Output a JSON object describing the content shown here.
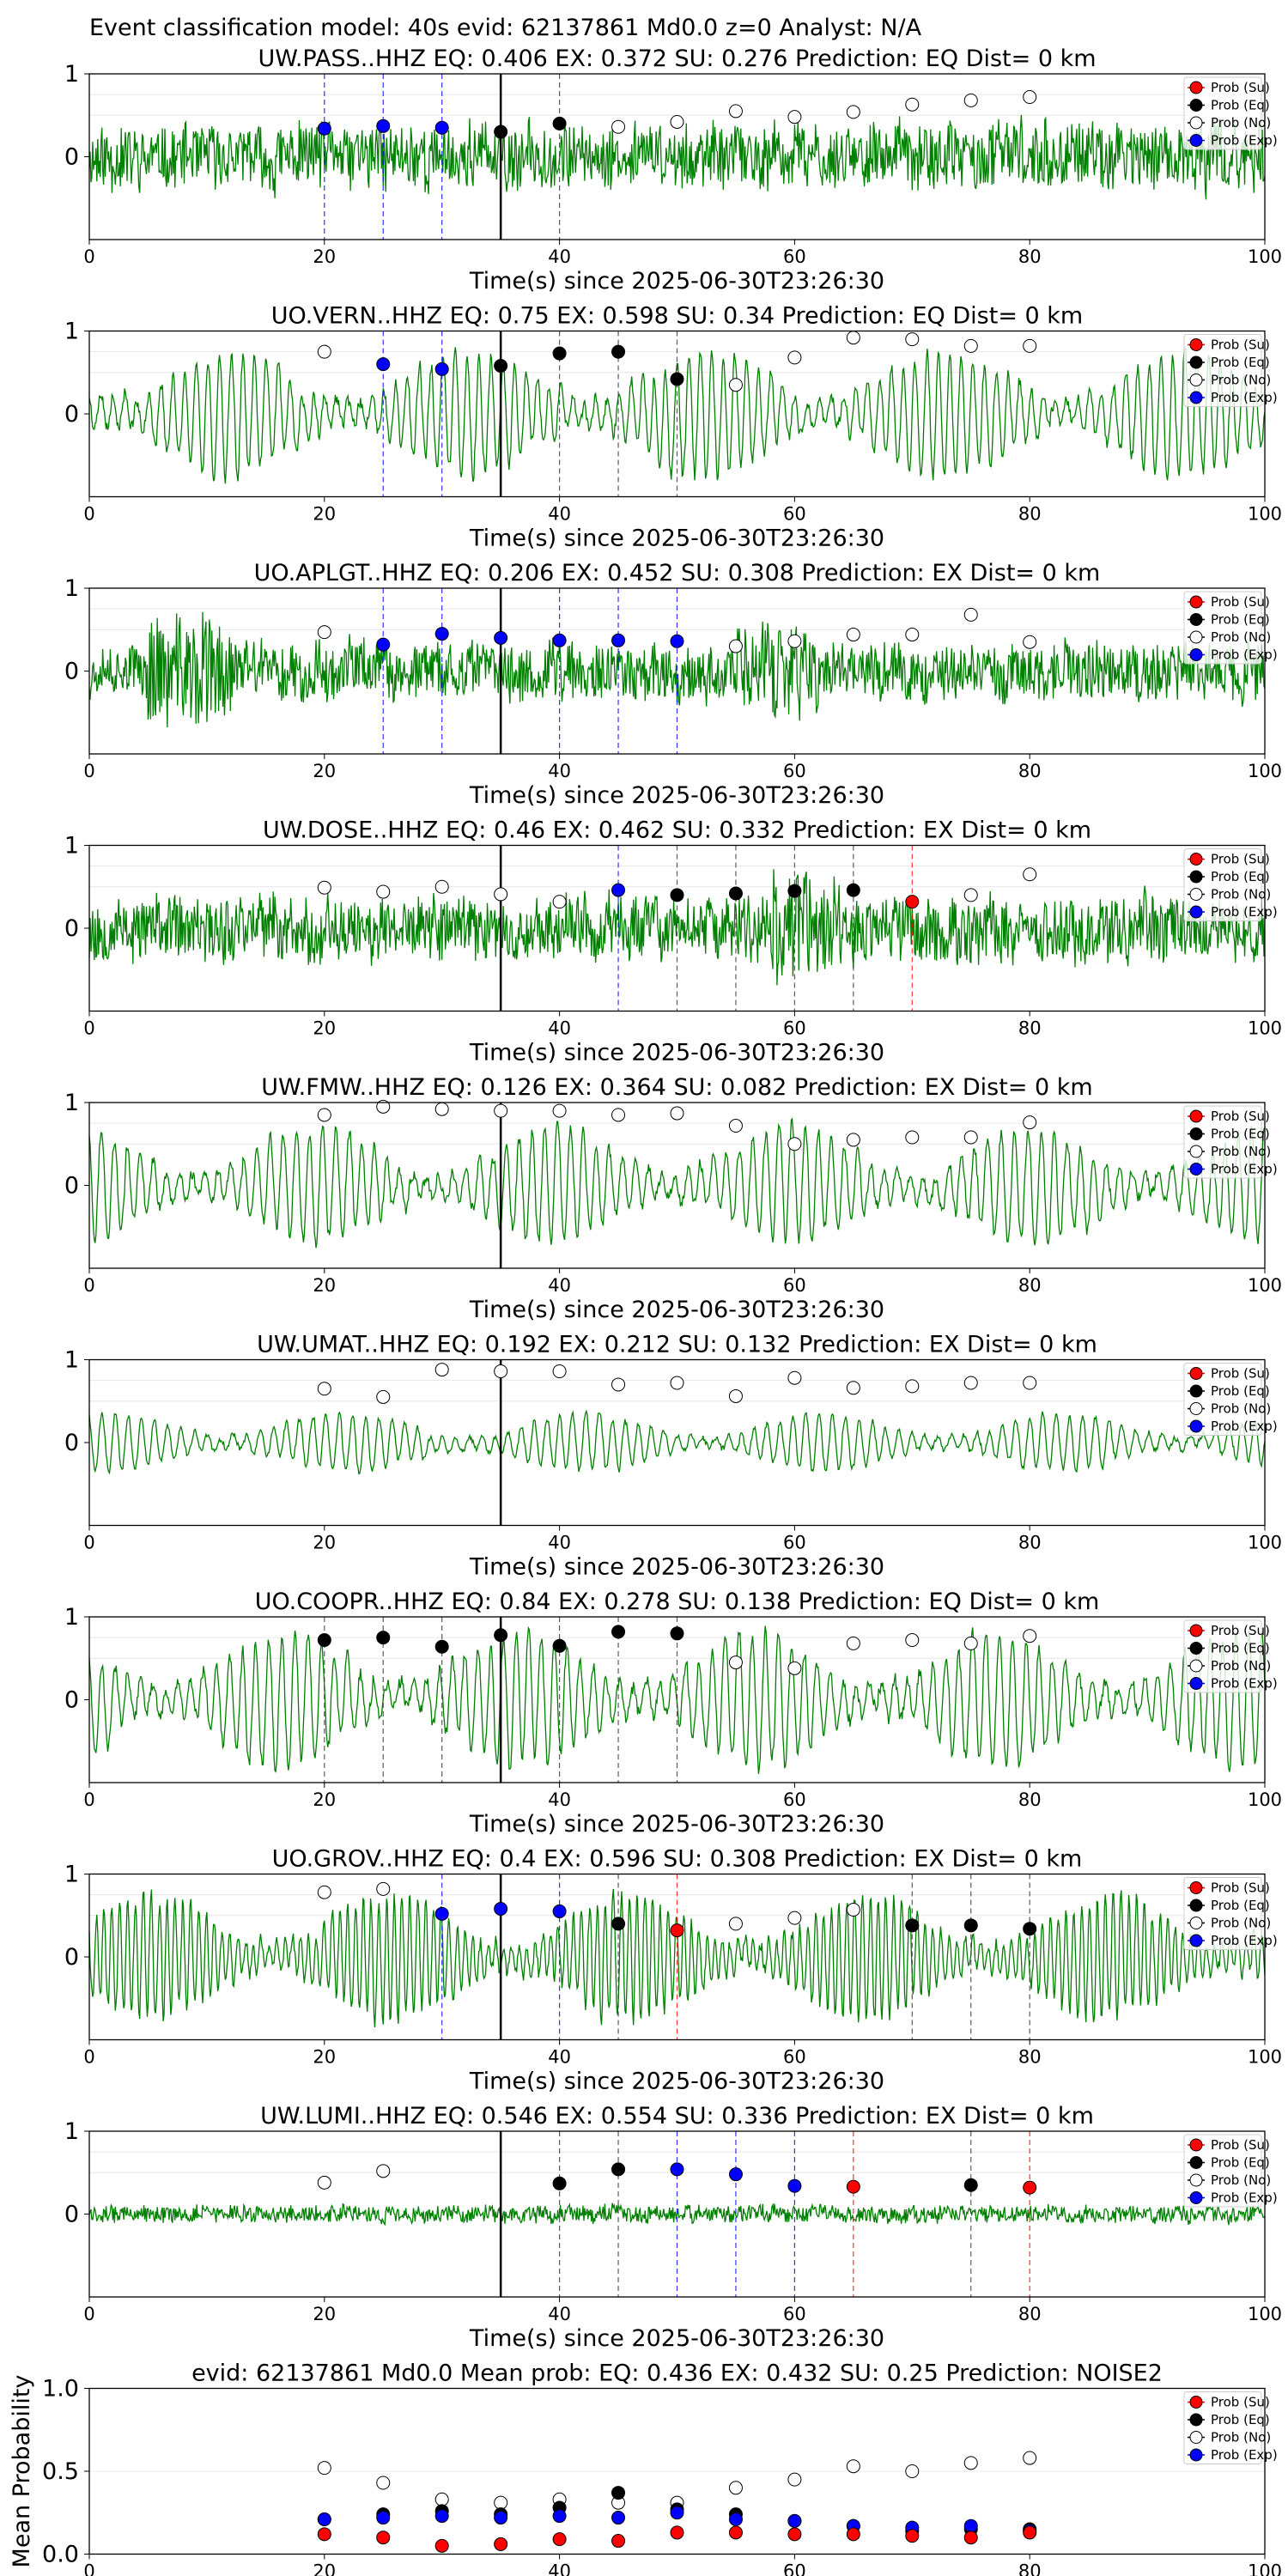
{
  "suptitle": "Event classification model: 40s evid: 62137861 Md0.0 z=0 Analyst: N/A",
  "colors": {
    "su": "#ff0000",
    "eq": "#000000",
    "no": "#ffffff",
    "exp": "#0000ff",
    "trace": "#008000"
  },
  "legend_labels": [
    "Prob (Su)",
    "Prob (Eq)",
    "Prob (No)",
    "Prob (Exp)"
  ],
  "xlabel": "Time(s) since 2025-06-30T23:26:30",
  "xticks": [
    0,
    20,
    40,
    60,
    80,
    100
  ],
  "yticks": [
    0,
    1
  ],
  "origin_time": 35,
  "chart_data": [
    {
      "type": "line",
      "station": "UW.PASS..HHZ",
      "title": "UW.PASS..HHZ   EQ: 0.406  EX: 0.372  SU: 0.276   Prediction: EQ    Dist= 0 km",
      "xlim": [
        0,
        100
      ],
      "ylim": [
        -1,
        1
      ],
      "amp": 0.45,
      "freq": 18,
      "seed": 11,
      "burst": [],
      "points": [
        {
          "x": 20,
          "y": 0.34,
          "c": "exp"
        },
        {
          "x": 25,
          "y": 0.37,
          "c": "exp"
        },
        {
          "x": 30,
          "y": 0.35,
          "c": "exp"
        },
        {
          "x": 35,
          "y": 0.3,
          "c": "eq"
        },
        {
          "x": 40,
          "y": 0.4,
          "c": "eq"
        },
        {
          "x": 45,
          "y": 0.36,
          "c": "no"
        },
        {
          "x": 50,
          "y": 0.42,
          "c": "no"
        },
        {
          "x": 55,
          "y": 0.55,
          "c": "no"
        },
        {
          "x": 60,
          "y": 0.48,
          "c": "no"
        },
        {
          "x": 65,
          "y": 0.54,
          "c": "no"
        },
        {
          "x": 70,
          "y": 0.63,
          "c": "no"
        },
        {
          "x": 75,
          "y": 0.68,
          "c": "no"
        },
        {
          "x": 80,
          "y": 0.72,
          "c": "no"
        }
      ],
      "vlines": [
        {
          "x": 20,
          "c": "exp"
        },
        {
          "x": 25,
          "c": "exp"
        },
        {
          "x": 30,
          "c": "exp"
        },
        {
          "x": 40,
          "c": "eq"
        }
      ]
    },
    {
      "type": "line",
      "station": "UO.VERN..HHZ",
      "title": "UO.VERN..HHZ   EQ: 0.75  EX: 0.598  SU: 0.34   Prediction: EQ    Dist= 0 km",
      "xlim": [
        0,
        100
      ],
      "ylim": [
        -1,
        1
      ],
      "amp": 0.75,
      "freq": 1.0,
      "seed": 23,
      "burst": [],
      "points": [
        {
          "x": 20,
          "y": 0.75,
          "c": "no"
        },
        {
          "x": 25,
          "y": 0.6,
          "c": "exp"
        },
        {
          "x": 30,
          "y": 0.54,
          "c": "exp"
        },
        {
          "x": 35,
          "y": 0.58,
          "c": "eq"
        },
        {
          "x": 40,
          "y": 0.73,
          "c": "eq"
        },
        {
          "x": 45,
          "y": 0.75,
          "c": "eq"
        },
        {
          "x": 50,
          "y": 0.42,
          "c": "eq"
        },
        {
          "x": 55,
          "y": 0.35,
          "c": "no"
        },
        {
          "x": 60,
          "y": 0.68,
          "c": "no"
        },
        {
          "x": 65,
          "y": 0.92,
          "c": "no"
        },
        {
          "x": 70,
          "y": 0.9,
          "c": "no"
        },
        {
          "x": 75,
          "y": 0.82,
          "c": "no"
        },
        {
          "x": 80,
          "y": 0.82,
          "c": "no"
        }
      ],
      "vlines": [
        {
          "x": 25,
          "c": "exp"
        },
        {
          "x": 30,
          "c": "exp"
        },
        {
          "x": 40,
          "c": "eq"
        },
        {
          "x": 45,
          "c": "eq"
        },
        {
          "x": 50,
          "c": "eq"
        }
      ]
    },
    {
      "type": "line",
      "station": "UO.APLGT..HHZ",
      "title": "UO.APLGT..HHZ   EQ: 0.206  EX: 0.452  SU: 0.308   Prediction: EX    Dist= 0 km",
      "xlim": [
        0,
        100
      ],
      "ylim": [
        -1,
        1
      ],
      "amp": 0.4,
      "freq": 18,
      "seed": 37,
      "burst": [
        [
          5,
          12,
          2.0
        ],
        [
          55,
          62,
          1.6
        ]
      ],
      "points": [
        {
          "x": 20,
          "y": 0.47,
          "c": "no"
        },
        {
          "x": 25,
          "y": 0.32,
          "c": "exp"
        },
        {
          "x": 30,
          "y": 0.45,
          "c": "exp"
        },
        {
          "x": 35,
          "y": 0.4,
          "c": "exp"
        },
        {
          "x": 40,
          "y": 0.37,
          "c": "exp"
        },
        {
          "x": 45,
          "y": 0.37,
          "c": "exp"
        },
        {
          "x": 50,
          "y": 0.36,
          "c": "exp"
        },
        {
          "x": 55,
          "y": 0.3,
          "c": "no"
        },
        {
          "x": 60,
          "y": 0.36,
          "c": "no"
        },
        {
          "x": 65,
          "y": 0.44,
          "c": "no"
        },
        {
          "x": 70,
          "y": 0.44,
          "c": "no"
        },
        {
          "x": 75,
          "y": 0.68,
          "c": "no"
        },
        {
          "x": 80,
          "y": 0.35,
          "c": "no"
        }
      ],
      "vlines": [
        {
          "x": 25,
          "c": "exp"
        },
        {
          "x": 30,
          "c": "exp"
        },
        {
          "x": 40,
          "c": "exp"
        },
        {
          "x": 45,
          "c": "exp"
        },
        {
          "x": 50,
          "c": "exp"
        }
      ]
    },
    {
      "type": "line",
      "station": "UW.DOSE..HHZ",
      "title": "UW.DOSE..HHZ   EQ: 0.46  EX: 0.462  SU: 0.332   Prediction: EX    Dist= 0 km",
      "xlim": [
        0,
        100
      ],
      "ylim": [
        -1,
        1
      ],
      "amp": 0.45,
      "freq": 18,
      "seed": 53,
      "burst": [
        [
          58,
          64,
          1.7
        ]
      ],
      "points": [
        {
          "x": 20,
          "y": 0.49,
          "c": "no"
        },
        {
          "x": 25,
          "y": 0.44,
          "c": "no"
        },
        {
          "x": 30,
          "y": 0.5,
          "c": "no"
        },
        {
          "x": 35,
          "y": 0.41,
          "c": "no"
        },
        {
          "x": 40,
          "y": 0.32,
          "c": "no"
        },
        {
          "x": 45,
          "y": 0.46,
          "c": "exp"
        },
        {
          "x": 50,
          "y": 0.4,
          "c": "eq"
        },
        {
          "x": 55,
          "y": 0.42,
          "c": "eq"
        },
        {
          "x": 60,
          "y": 0.45,
          "c": "eq"
        },
        {
          "x": 65,
          "y": 0.46,
          "c": "eq"
        },
        {
          "x": 70,
          "y": 0.32,
          "c": "su"
        },
        {
          "x": 75,
          "y": 0.4,
          "c": "no"
        },
        {
          "x": 80,
          "y": 0.65,
          "c": "no"
        }
      ],
      "vlines": [
        {
          "x": 45,
          "c": "exp"
        },
        {
          "x": 50,
          "c": "eq"
        },
        {
          "x": 55,
          "c": "eq"
        },
        {
          "x": 60,
          "c": "eq"
        },
        {
          "x": 65,
          "c": "eq"
        },
        {
          "x": 70,
          "c": "su"
        }
      ]
    },
    {
      "type": "line",
      "station": "UW.FMW..HHZ",
      "title": "UW.FMW..HHZ   EQ: 0.126  EX: 0.364  SU: 0.082   Prediction: EX    Dist= 0 km",
      "xlim": [
        0,
        100
      ],
      "ylim": [
        -1,
        1
      ],
      "amp": 0.7,
      "freq": 0.9,
      "seed": 71,
      "burst": [],
      "points": [
        {
          "x": 20,
          "y": 0.85,
          "c": "no"
        },
        {
          "x": 25,
          "y": 0.95,
          "c": "no"
        },
        {
          "x": 30,
          "y": 0.92,
          "c": "no"
        },
        {
          "x": 35,
          "y": 0.9,
          "c": "no"
        },
        {
          "x": 40,
          "y": 0.9,
          "c": "no"
        },
        {
          "x": 45,
          "y": 0.85,
          "c": "no"
        },
        {
          "x": 50,
          "y": 0.87,
          "c": "no"
        },
        {
          "x": 55,
          "y": 0.72,
          "c": "no"
        },
        {
          "x": 60,
          "y": 0.5,
          "c": "no"
        },
        {
          "x": 65,
          "y": 0.55,
          "c": "no"
        },
        {
          "x": 70,
          "y": 0.58,
          "c": "no"
        },
        {
          "x": 75,
          "y": 0.58,
          "c": "no"
        },
        {
          "x": 80,
          "y": 0.76,
          "c": "no"
        }
      ],
      "vlines": []
    },
    {
      "type": "line",
      "station": "UW.UMAT..HHZ",
      "title": "UW.UMAT..HHZ   EQ: 0.192  EX: 0.212  SU: 0.132   Prediction: EX    Dist= 0 km",
      "xlim": [
        0,
        100
      ],
      "ylim": [
        -1,
        1
      ],
      "amp": 0.35,
      "freq": 0.9,
      "seed": 89,
      "burst": [],
      "points": [
        {
          "x": 20,
          "y": 0.65,
          "c": "no"
        },
        {
          "x": 25,
          "y": 0.55,
          "c": "no"
        },
        {
          "x": 30,
          "y": 0.88,
          "c": "no"
        },
        {
          "x": 35,
          "y": 0.86,
          "c": "no"
        },
        {
          "x": 40,
          "y": 0.86,
          "c": "no"
        },
        {
          "x": 45,
          "y": 0.7,
          "c": "no"
        },
        {
          "x": 50,
          "y": 0.72,
          "c": "no"
        },
        {
          "x": 55,
          "y": 0.56,
          "c": "no"
        },
        {
          "x": 60,
          "y": 0.78,
          "c": "no"
        },
        {
          "x": 65,
          "y": 0.66,
          "c": "no"
        },
        {
          "x": 70,
          "y": 0.68,
          "c": "no"
        },
        {
          "x": 75,
          "y": 0.72,
          "c": "no"
        },
        {
          "x": 80,
          "y": 0.72,
          "c": "no"
        }
      ],
      "vlines": []
    },
    {
      "type": "line",
      "station": "UO.COOPR..HHZ",
      "title": "UO.COOPR..HHZ   EQ: 0.84  EX: 0.278  SU: 0.138   Prediction: EQ    Dist= 0 km",
      "xlim": [
        0,
        100
      ],
      "ylim": [
        -1,
        1
      ],
      "amp": 0.8,
      "freq": 0.9,
      "seed": 97,
      "burst": [],
      "points": [
        {
          "x": 20,
          "y": 0.72,
          "c": "eq"
        },
        {
          "x": 25,
          "y": 0.75,
          "c": "eq"
        },
        {
          "x": 30,
          "y": 0.64,
          "c": "eq"
        },
        {
          "x": 35,
          "y": 0.78,
          "c": "eq"
        },
        {
          "x": 40,
          "y": 0.65,
          "c": "eq"
        },
        {
          "x": 45,
          "y": 0.82,
          "c": "eq"
        },
        {
          "x": 50,
          "y": 0.8,
          "c": "eq"
        },
        {
          "x": 55,
          "y": 0.45,
          "c": "no"
        },
        {
          "x": 60,
          "y": 0.38,
          "c": "no"
        },
        {
          "x": 65,
          "y": 0.68,
          "c": "no"
        },
        {
          "x": 70,
          "y": 0.72,
          "c": "no"
        },
        {
          "x": 75,
          "y": 0.68,
          "c": "no"
        },
        {
          "x": 80,
          "y": 0.77,
          "c": "no"
        }
      ],
      "vlines": [
        {
          "x": 20,
          "c": "eq"
        },
        {
          "x": 25,
          "c": "eq"
        },
        {
          "x": 30,
          "c": "eq"
        },
        {
          "x": 40,
          "c": "eq"
        },
        {
          "x": 45,
          "c": "eq"
        },
        {
          "x": 50,
          "c": "eq"
        }
      ]
    },
    {
      "type": "line",
      "station": "UO.GROV..HHZ",
      "title": "UO.GROV..HHZ   EQ: 0.4  EX: 0.596  SU: 0.308   Prediction: EX    Dist= 0 km",
      "xlim": [
        0,
        100
      ],
      "ylim": [
        -1,
        1
      ],
      "amp": 0.75,
      "freq": 1.5,
      "seed": 113,
      "burst": [],
      "points": [
        {
          "x": 20,
          "y": 0.78,
          "c": "no"
        },
        {
          "x": 25,
          "y": 0.82,
          "c": "no"
        },
        {
          "x": 30,
          "y": 0.52,
          "c": "exp"
        },
        {
          "x": 35,
          "y": 0.58,
          "c": "exp"
        },
        {
          "x": 40,
          "y": 0.55,
          "c": "exp"
        },
        {
          "x": 45,
          "y": 0.4,
          "c": "eq"
        },
        {
          "x": 50,
          "y": 0.32,
          "c": "su"
        },
        {
          "x": 55,
          "y": 0.4,
          "c": "no"
        },
        {
          "x": 60,
          "y": 0.47,
          "c": "no"
        },
        {
          "x": 65,
          "y": 0.57,
          "c": "no"
        },
        {
          "x": 70,
          "y": 0.38,
          "c": "eq"
        },
        {
          "x": 75,
          "y": 0.38,
          "c": "eq"
        },
        {
          "x": 80,
          "y": 0.34,
          "c": "eq"
        }
      ],
      "vlines": [
        {
          "x": 30,
          "c": "exp"
        },
        {
          "x": 40,
          "c": "exp"
        },
        {
          "x": 45,
          "c": "eq"
        },
        {
          "x": 50,
          "c": "su"
        },
        {
          "x": 70,
          "c": "eq"
        },
        {
          "x": 75,
          "c": "eq"
        },
        {
          "x": 80,
          "c": "eq"
        }
      ]
    },
    {
      "type": "line",
      "station": "UW.LUMI..HHZ",
      "title": "UW.LUMI..HHZ   EQ: 0.546  EX: 0.554  SU: 0.336   Prediction: EX    Dist= 0 km",
      "xlim": [
        0,
        100
      ],
      "ylim": [
        -1,
        1
      ],
      "amp": 0.12,
      "freq": 18,
      "seed": 131,
      "burst": [],
      "points": [
        {
          "x": 20,
          "y": 0.38,
          "c": "no"
        },
        {
          "x": 25,
          "y": 0.52,
          "c": "no"
        },
        {
          "x": 40,
          "y": 0.37,
          "c": "eq"
        },
        {
          "x": 45,
          "y": 0.54,
          "c": "eq"
        },
        {
          "x": 50,
          "y": 0.54,
          "c": "exp"
        },
        {
          "x": 55,
          "y": 0.48,
          "c": "exp"
        },
        {
          "x": 60,
          "y": 0.34,
          "c": "exp"
        },
        {
          "x": 65,
          "y": 0.33,
          "c": "su"
        },
        {
          "x": 75,
          "y": 0.35,
          "c": "eq"
        },
        {
          "x": 80,
          "y": 0.32,
          "c": "su"
        }
      ],
      "vlines": [
        {
          "x": 40,
          "c": "eq"
        },
        {
          "x": 45,
          "c": "eq"
        },
        {
          "x": 50,
          "c": "exp"
        },
        {
          "x": 55,
          "c": "exp"
        },
        {
          "x": 60,
          "c": "exp"
        },
        {
          "x": 65,
          "c": "su"
        },
        {
          "x": 75,
          "c": "eq"
        },
        {
          "x": 80,
          "c": "su"
        }
      ]
    },
    {
      "type": "scatter",
      "title": "evid: 62137861  Md0.0   Mean prob:    EQ: 0.436  EX: 0.432  SU: 0.25   Prediction: NOISE2",
      "ylabel": "Mean Probability",
      "xlim": [
        0,
        100
      ],
      "ylim": [
        0,
        1
      ],
      "yticks": [
        0.0,
        0.5,
        1.0
      ],
      "x": [
        20,
        25,
        30,
        35,
        40,
        45,
        50,
        55,
        60,
        65,
        70,
        75,
        80
      ],
      "series": [
        {
          "name": "Prob (No)",
          "c": "no",
          "values": [
            0.52,
            0.43,
            0.33,
            0.31,
            0.33,
            0.31,
            0.31,
            0.4,
            0.45,
            0.53,
            0.5,
            0.55,
            0.58
          ]
        },
        {
          "name": "Prob (Eq)",
          "c": "eq",
          "values": [
            0.21,
            0.24,
            0.26,
            0.24,
            0.28,
            0.37,
            0.27,
            0.24,
            0.2,
            0.17,
            0.14,
            0.15,
            0.15
          ]
        },
        {
          "name": "Prob (Exp)",
          "c": "exp",
          "values": [
            0.21,
            0.22,
            0.23,
            0.22,
            0.23,
            0.22,
            0.25,
            0.21,
            0.2,
            0.17,
            0.16,
            0.17,
            0.14
          ]
        },
        {
          "name": "Prob (Su)",
          "c": "su",
          "values": [
            0.12,
            0.1,
            0.05,
            0.06,
            0.09,
            0.08,
            0.13,
            0.13,
            0.12,
            0.12,
            0.11,
            0.1,
            0.13
          ]
        }
      ]
    }
  ]
}
